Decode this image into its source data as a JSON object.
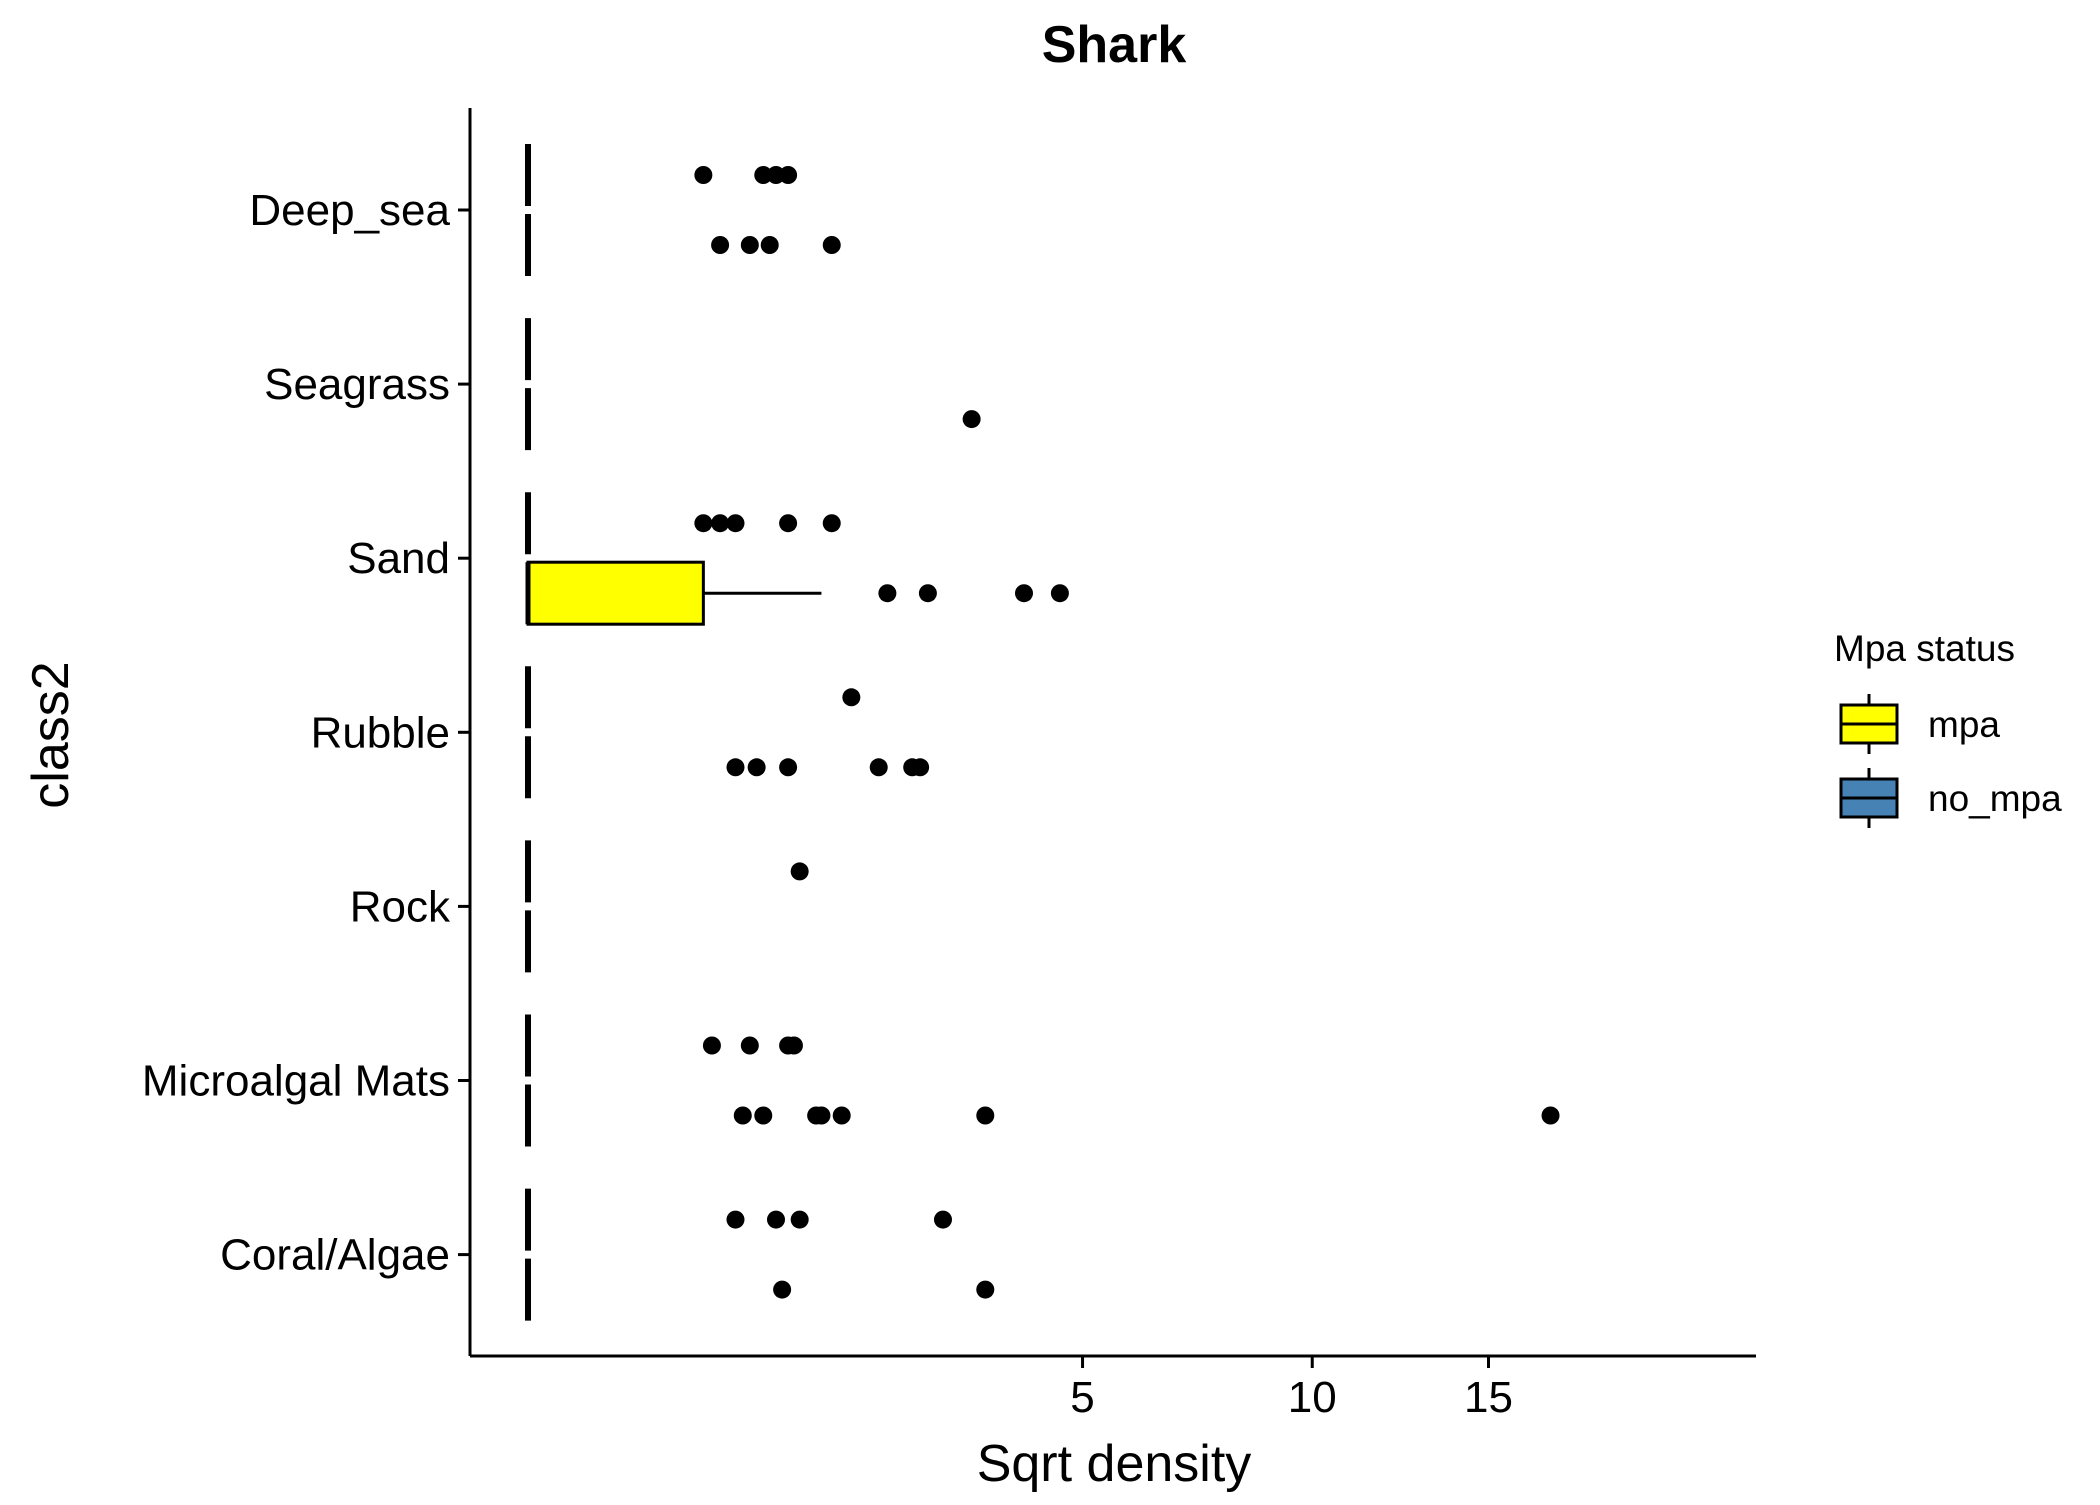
{
  "chart_data": {
    "type": "box",
    "title": "Shark",
    "xlabel": "Sqrt density",
    "ylabel": "class2",
    "x_scale": "sqrt",
    "xlim": [
      0,
      19
    ],
    "x_ticks": [
      5,
      10,
      15
    ],
    "categories": [
      "Deep_sea",
      "Seagrass",
      "Sand",
      "Rubble",
      "Rock",
      "Microalgal Mats",
      "Coral/Algae"
    ],
    "legend": {
      "title": "Mpa status",
      "position": "right",
      "entries": [
        {
          "label": "mpa",
          "color": "#FFFF00"
        },
        {
          "label": "no_mpa",
          "color": "#4682B4"
        }
      ]
    },
    "series": [
      {
        "name": "mpa",
        "fill": "#FFFF00",
        "boxes": [
          {
            "category": "Deep_sea",
            "min": 0,
            "q1": 0,
            "median": 0,
            "q3": 0,
            "max": 0
          },
          {
            "category": "Seagrass",
            "min": 0,
            "q1": 0,
            "median": 0,
            "q3": 0,
            "max": 0
          },
          {
            "category": "Sand",
            "min": 0,
            "q1": 0,
            "median": 0,
            "q3": 0.5,
            "max": 1.4
          },
          {
            "category": "Rubble",
            "min": 0,
            "q1": 0,
            "median": 0,
            "q3": 0,
            "max": 0
          },
          {
            "category": "Rock",
            "min": 0,
            "q1": 0,
            "median": 0,
            "q3": 0,
            "max": 0
          },
          {
            "category": "Microalgal Mats",
            "min": 0,
            "q1": 0,
            "median": 0,
            "q3": 0,
            "max": 0
          },
          {
            "category": "Coral/Algae",
            "min": 0,
            "q1": 0,
            "median": 0,
            "q3": 0,
            "max": 0
          }
        ],
        "outliers": [
          {
            "category": "Deep_sea",
            "values": [
              0.6,
              0.8,
              0.95,
              1.5
            ]
          },
          {
            "category": "Seagrass",
            "values": [
              3.2
            ]
          },
          {
            "category": "Sand",
            "values": [
              2.1,
              2.6,
              4.0,
              4.6
            ]
          },
          {
            "category": "Rubble",
            "values": [
              0.7,
              0.85,
              1.1,
              2.0,
              2.4,
              2.5
            ]
          },
          {
            "category": "Rock",
            "values": []
          },
          {
            "category": "Microalgal Mats",
            "values": [
              0.75,
              0.9,
              1.35,
              1.4,
              1.6,
              3.4,
              17.0
            ]
          },
          {
            "category": "Coral/Algae",
            "values": [
              1.05,
              3.4
            ]
          }
        ]
      },
      {
        "name": "no_mpa",
        "fill": "#4682B4",
        "boxes": [
          {
            "category": "Deep_sea",
            "min": 0,
            "q1": 0,
            "median": 0,
            "q3": 0,
            "max": 0
          },
          {
            "category": "Seagrass",
            "min": 0,
            "q1": 0,
            "median": 0,
            "q3": 0,
            "max": 0
          },
          {
            "category": "Sand",
            "min": 0,
            "q1": 0,
            "median": 0,
            "q3": 0,
            "max": 0
          },
          {
            "category": "Rubble",
            "min": 0,
            "q1": 0,
            "median": 0,
            "q3": 0,
            "max": 0
          },
          {
            "category": "Rock",
            "min": 0,
            "q1": 0,
            "median": 0,
            "q3": 0,
            "max": 0
          },
          {
            "category": "Microalgal Mats",
            "min": 0,
            "q1": 0,
            "median": 0,
            "q3": 0,
            "max": 0
          },
          {
            "category": "Coral/Algae",
            "min": 0,
            "q1": 0,
            "median": 0,
            "q3": 0,
            "max": 0
          }
        ],
        "outliers": [
          {
            "category": "Deep_sea",
            "values": [
              0.5,
              0.9,
              1.0,
              1.1
            ]
          },
          {
            "category": "Seagrass",
            "values": []
          },
          {
            "category": "Sand",
            "values": [
              0.5,
              0.6,
              0.7,
              1.1,
              1.5
            ]
          },
          {
            "category": "Rubble",
            "values": [
              1.7
            ]
          },
          {
            "category": "Rock",
            "values": [
              1.2
            ]
          },
          {
            "category": "Microalgal Mats",
            "values": [
              0.55,
              0.8,
              1.1,
              1.15
            ]
          },
          {
            "category": "Coral/Algae",
            "values": [
              0.7,
              1.0,
              1.2,
              2.8
            ]
          }
        ]
      }
    ]
  }
}
